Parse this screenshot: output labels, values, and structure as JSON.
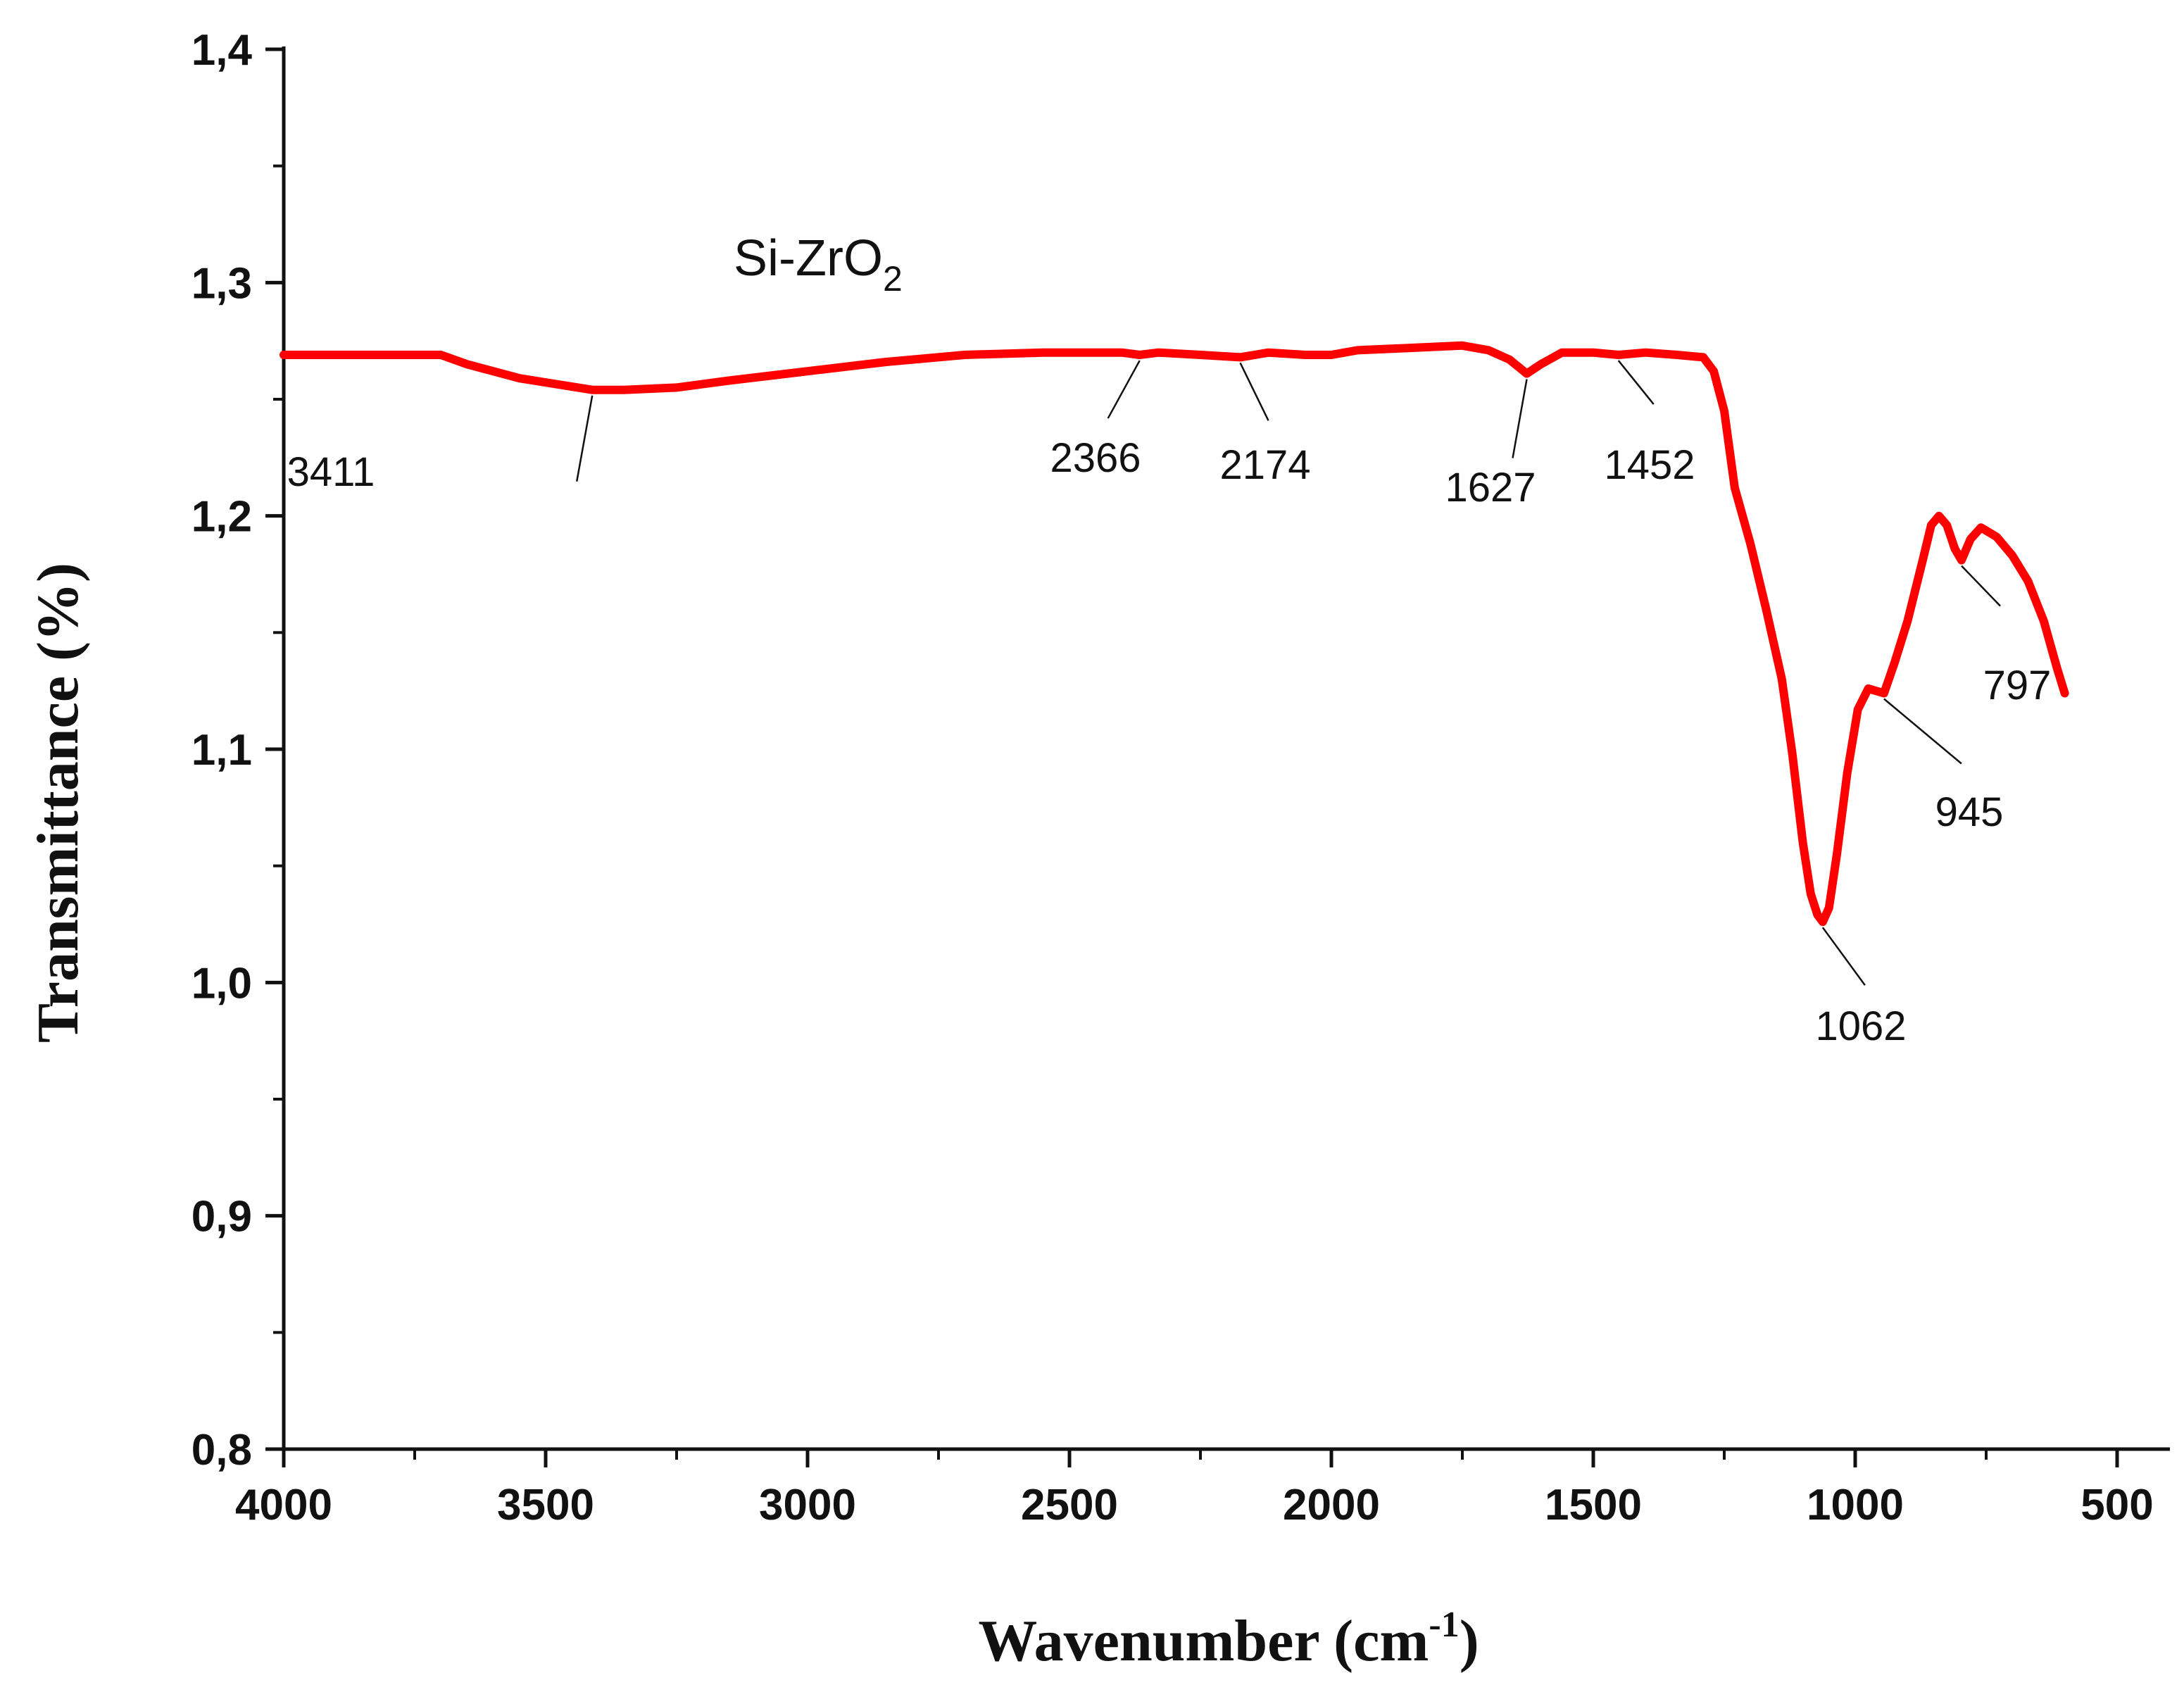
{
  "chart_data": {
    "type": "line",
    "series_label": {
      "main": "Si-ZrO",
      "sub": "2"
    },
    "xlabel": {
      "main": "Wavenumber (cm",
      "sup": "-1",
      "end": ")"
    },
    "ylabel": "Transmittance (%)",
    "xlim": [
      4000,
      430
    ],
    "ylim": [
      0.8,
      1.4
    ],
    "x_reversed": true,
    "x_ticks": [
      4000,
      3500,
      3000,
      2500,
      2000,
      1500,
      1000,
      500
    ],
    "x_tick_labels": [
      "4000",
      "3500",
      "3000",
      "2500",
      "2000",
      "1500",
      "1000",
      "500"
    ],
    "y_ticks": [
      0.8,
      0.9,
      1.0,
      1.1,
      1.2,
      1.3,
      1.4
    ],
    "y_tick_labels": [
      "0,8",
      "0,9",
      "1,0",
      "1,1",
      "1,2",
      "1,3",
      "1,4"
    ],
    "grid": false,
    "line_color": "#ff0000",
    "series": [
      {
        "x": [
          4000,
          3850,
          3700,
          3650,
          3550,
          3411,
          3350,
          3250,
          3150,
          3000,
          2850,
          2700,
          2550,
          2400,
          2366,
          2330,
          2250,
          2174,
          2120,
          2050,
          2000,
          1950,
          1850,
          1750,
          1700,
          1660,
          1627,
          1600,
          1560,
          1500,
          1452,
          1400,
          1340,
          1290,
          1270,
          1250,
          1230,
          1200,
          1170,
          1140,
          1120,
          1100,
          1085,
          1072,
          1062,
          1050,
          1035,
          1015,
          995,
          975,
          960,
          945,
          925,
          900,
          870,
          855,
          840,
          825,
          810,
          797,
          780,
          760,
          730,
          700,
          670,
          640,
          615,
          600
        ],
        "y": [
          1.269,
          1.269,
          1.269,
          1.265,
          1.259,
          1.254,
          1.254,
          1.255,
          1.258,
          1.262,
          1.266,
          1.269,
          1.27,
          1.27,
          1.269,
          1.27,
          1.269,
          1.268,
          1.27,
          1.269,
          1.269,
          1.271,
          1.272,
          1.273,
          1.271,
          1.267,
          1.261,
          1.265,
          1.27,
          1.27,
          1.269,
          1.27,
          1.269,
          1.268,
          1.262,
          1.245,
          1.212,
          1.188,
          1.16,
          1.13,
          1.098,
          1.06,
          1.038,
          1.029,
          1.026,
          1.032,
          1.055,
          1.09,
          1.117,
          1.126,
          1.125,
          1.124,
          1.137,
          1.155,
          1.182,
          1.196,
          1.2,
          1.196,
          1.186,
          1.181,
          1.19,
          1.195,
          1.191,
          1.183,
          1.172,
          1.155,
          1.135,
          1.124
        ]
      }
    ],
    "annotations": [
      {
        "label": "3411",
        "x": 3411,
        "y": 1.254
      },
      {
        "label": "2366",
        "x": 2366,
        "y": 1.269
      },
      {
        "label": "2174",
        "x": 2174,
        "y": 1.268
      },
      {
        "label": "1627",
        "x": 1627,
        "y": 1.261
      },
      {
        "label": "1452",
        "x": 1452,
        "y": 1.269
      },
      {
        "label": "1062",
        "x": 1062,
        "y": 1.026
      },
      {
        "label": "945",
        "x": 945,
        "y": 1.124
      },
      {
        "label": "797",
        "x": 797,
        "y": 1.181
      }
    ]
  }
}
